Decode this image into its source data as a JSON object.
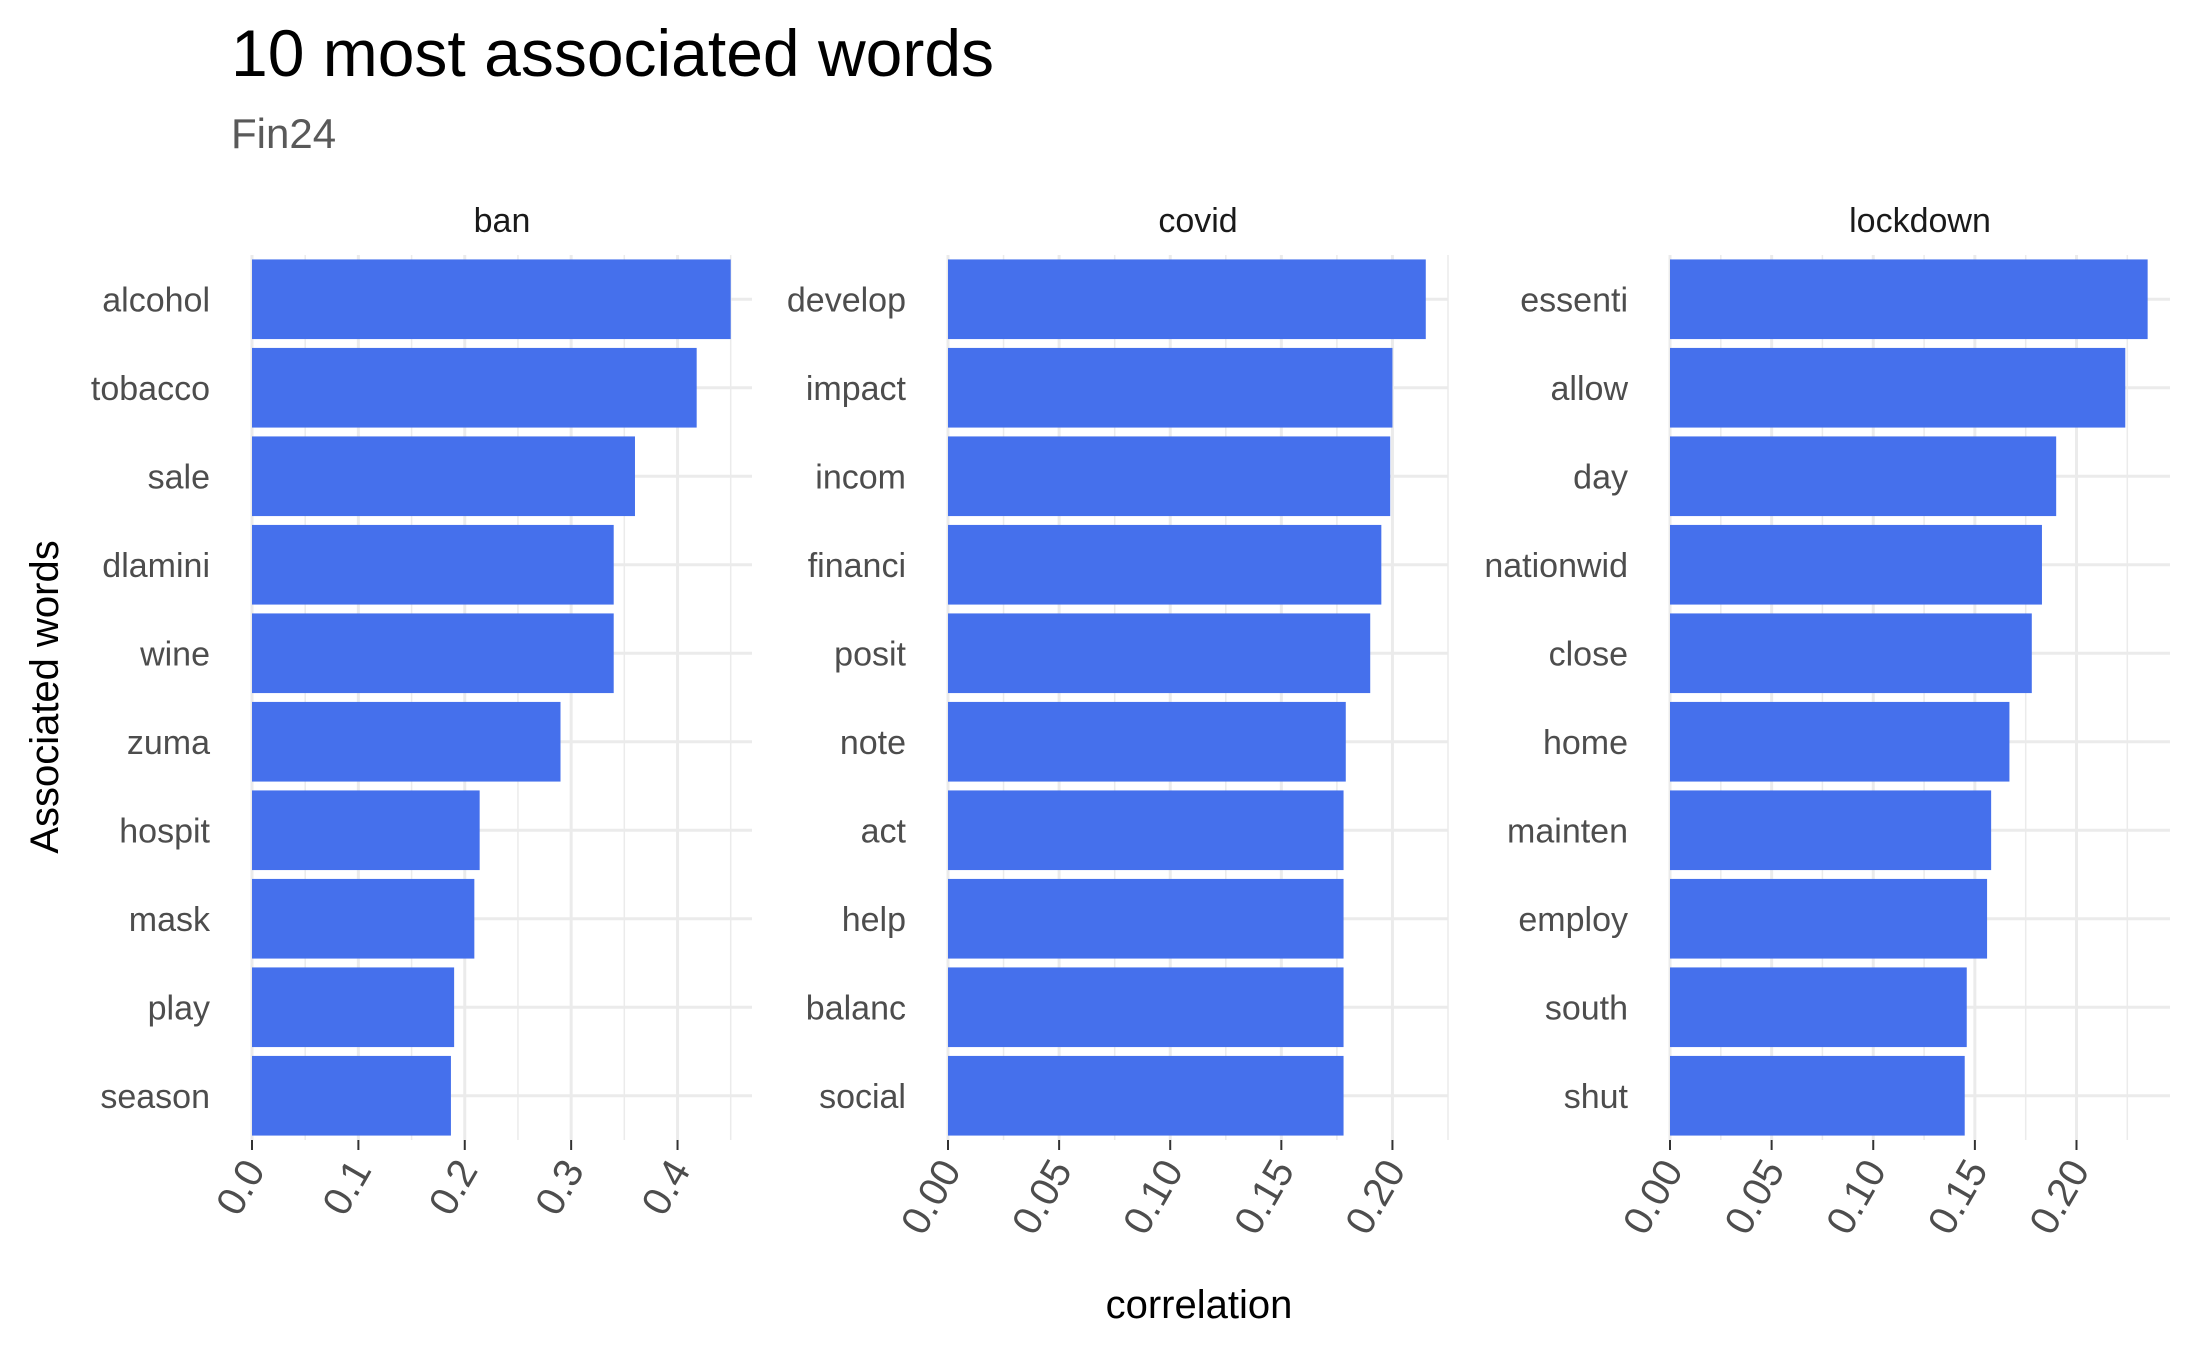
{
  "chart_data": {
    "type": "bar",
    "orientation": "horizontal",
    "title": "10 most associated words",
    "subtitle": "Fin24",
    "xlabel": "correlation",
    "ylabel": "Associated words",
    "grid": true,
    "bar_color": "#4570EC",
    "panels": [
      {
        "name": "ban",
        "categories": [
          "alcohol",
          "tobacco",
          "sale",
          "dlamini",
          "wine",
          "zuma",
          "hospit",
          "mask",
          "play",
          "season"
        ],
        "values": [
          0.45,
          0.418,
          0.36,
          0.34,
          0.34,
          0.29,
          0.214,
          0.209,
          0.19,
          0.187
        ],
        "xlim": [
          0,
          0.47
        ],
        "ticks": [
          0.0,
          0.1,
          0.2,
          0.3,
          0.4
        ],
        "tick_labels": [
          "0.0",
          "0.1",
          "0.2",
          "0.3",
          "0.4"
        ]
      },
      {
        "name": "covid",
        "categories": [
          "develop",
          "impact",
          "incom",
          "financi",
          "posit",
          "note",
          "act",
          "help",
          "balanc",
          "social"
        ],
        "values": [
          0.215,
          0.2,
          0.199,
          0.195,
          0.19,
          0.179,
          0.178,
          0.178,
          0.178,
          0.178
        ],
        "xlim": [
          0,
          0.225
        ],
        "ticks": [
          0.0,
          0.05,
          0.1,
          0.15,
          0.2
        ],
        "tick_labels": [
          "0.00",
          "0.05",
          "0.10",
          "0.15",
          "0.20"
        ]
      },
      {
        "name": "lockdown",
        "categories": [
          "essenti",
          "allow",
          "day",
          "nationwid",
          "close",
          "home",
          "mainten",
          "employ",
          "south",
          "shut"
        ],
        "values": [
          0.235,
          0.224,
          0.19,
          0.183,
          0.178,
          0.167,
          0.158,
          0.156,
          0.146,
          0.145
        ],
        "xlim": [
          0,
          0.246
        ],
        "ticks": [
          0.0,
          0.05,
          0.1,
          0.15,
          0.2
        ],
        "tick_labels": [
          "0.00",
          "0.05",
          "0.10",
          "0.15",
          "0.20"
        ]
      }
    ]
  }
}
